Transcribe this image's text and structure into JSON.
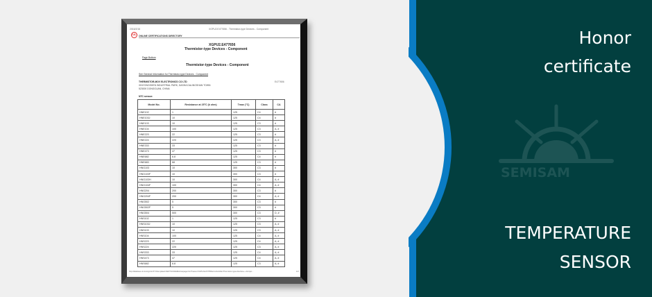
{
  "document": {
    "date": "2016/2/16",
    "header_title": "XGPU2.E477656 - Thermistor-type Devices - Component",
    "directory": "ONLINE CERTIFICATIONS DIRECTORY",
    "code": "XGPU2.E477656",
    "title": "Thermistor-type Devices - Component",
    "page_bottom": "Page Bottom",
    "section_title": "Thermistor-type Devices - Component",
    "general_info_link": "See General Information for Thermistor-type Devices - Component",
    "company": "THERMISTOR-MOV ELECTRONICS CO LTD",
    "address1": "XINYONGSHEN INDUSTRIAL PARK, DASHA DALINGSHAN TOWN",
    "address2": "523000 DONGGUAN, CHINA",
    "file_no": "E477656",
    "section_label": "NTC sensor:",
    "columns": [
      "Model No.",
      "Resistance at 25°C (k ohm)",
      "Tmax (°C)",
      "Class",
      "CA"
    ],
    "rows": [
      [
        "HNE102",
        "1",
        "125",
        "C4",
        "#"
      ],
      [
        "HNE103J",
        "10",
        "125",
        "C4",
        "#"
      ],
      [
        "HNE103",
        "10",
        "125",
        "C3",
        "#"
      ],
      [
        "HNE104",
        "100",
        "125",
        "C3",
        "A, #"
      ],
      [
        "HNE223",
        "22",
        "125",
        "C3",
        "#"
      ],
      [
        "HNE224",
        "220",
        "125",
        "C3",
        "A, #"
      ],
      [
        "HNE333",
        "33",
        "125",
        "C3",
        "#"
      ],
      [
        "HNE473",
        "47",
        "125",
        "C3",
        "#"
      ],
      [
        "HNE682",
        "6.8",
        "125",
        "C4",
        "#"
      ],
      [
        "HNE683",
        "68",
        "125",
        "C3",
        "#"
      ],
      [
        "HNG103",
        "10",
        "300",
        "C3",
        "#"
      ],
      [
        "HNG103F",
        "10",
        "300",
        "C3",
        "#"
      ],
      [
        "HNG103H",
        "10",
        "300",
        "C4",
        "A, #"
      ],
      [
        "HNG104F",
        "100",
        "300",
        "C4",
        "A, #"
      ],
      [
        "HNG204",
        "200",
        "300",
        "C3",
        "#"
      ],
      [
        "HNG204F",
        "200",
        "300",
        "C4",
        "A, #"
      ],
      [
        "HNG502",
        "5",
        "300",
        "C3",
        "#"
      ],
      [
        "HNG502F",
        "5",
        "300",
        "C3",
        "#"
      ],
      [
        "HNG504",
        "500",
        "300",
        "C3",
        "D, #"
      ],
      [
        "HNS102",
        "1",
        "125",
        "C3",
        "#"
      ],
      [
        "HNS103J",
        "10",
        "125",
        "C3",
        "A, #"
      ],
      [
        "HNS103",
        "10",
        "125",
        "C3",
        "A, #"
      ],
      [
        "HNS104",
        "100",
        "125",
        "C4",
        "A, #"
      ],
      [
        "HNS223",
        "22",
        "125",
        "C4",
        "A, #"
      ],
      [
        "HNS224",
        "220",
        "125",
        "C3",
        "A, #"
      ],
      [
        "HNS333",
        "33",
        "125",
        "C4",
        "A, #"
      ],
      [
        "HNS473",
        "47",
        "125",
        "C4",
        "A, #"
      ],
      [
        "HNS682",
        "6.8",
        "125",
        "C3",
        "A, #"
      ]
    ],
    "footer_url": "http://database.ul.com/cgi-bin/XYV/template/LISEXT/1FRAME/showpage.html?name=XGPU2.E477656&ccnshorttitle=Thermistor-type+Devices+-+Compo...",
    "page_number": "1/3",
    "ul_logo": "UL"
  },
  "panel": {
    "title_line1": "Honor",
    "title_line2": "certificate",
    "logo_text": "SEMISAM",
    "product_line1": "TEMPERATURE",
    "product_line2": "SENSOR",
    "colors": {
      "panel": "#023f3f",
      "accent": "#0a7cc4",
      "background": "#f0f0f0",
      "logo": "#1d5454"
    }
  }
}
